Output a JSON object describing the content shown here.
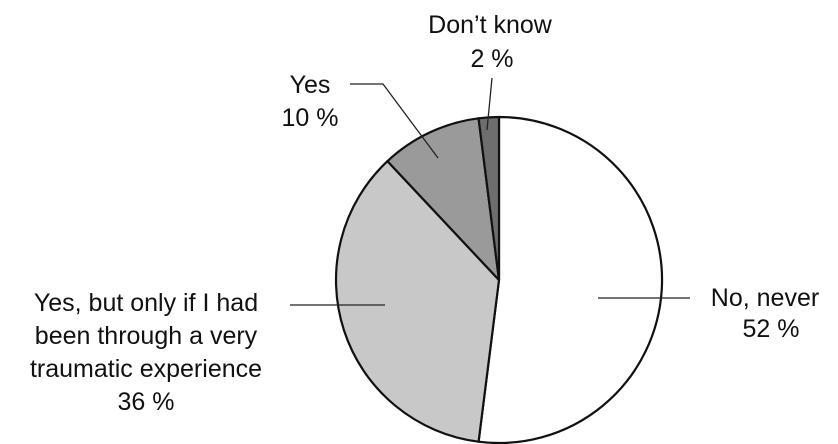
{
  "chart_data": {
    "type": "pie",
    "title": "",
    "start": "12 o'clock",
    "direction": "clockwise",
    "slices": [
      {
        "label": "No, never",
        "value": 52,
        "value_label": "52 %",
        "color": "#ffffff"
      },
      {
        "label": "Yes, but only if I had been through a very traumatic experience",
        "label_lines": [
          "Yes, but only if I had",
          "been through a very",
          "traumatic experience"
        ],
        "value": 36,
        "value_label": "36 %",
        "color": "#c8c8c8"
      },
      {
        "label": "Yes",
        "value": 10,
        "value_label": "10 %",
        "color": "#9a9a9a"
      },
      {
        "label": "Don’t know",
        "value": 2,
        "value_label": "2 %",
        "color": "#6e6e6e"
      }
    ]
  }
}
